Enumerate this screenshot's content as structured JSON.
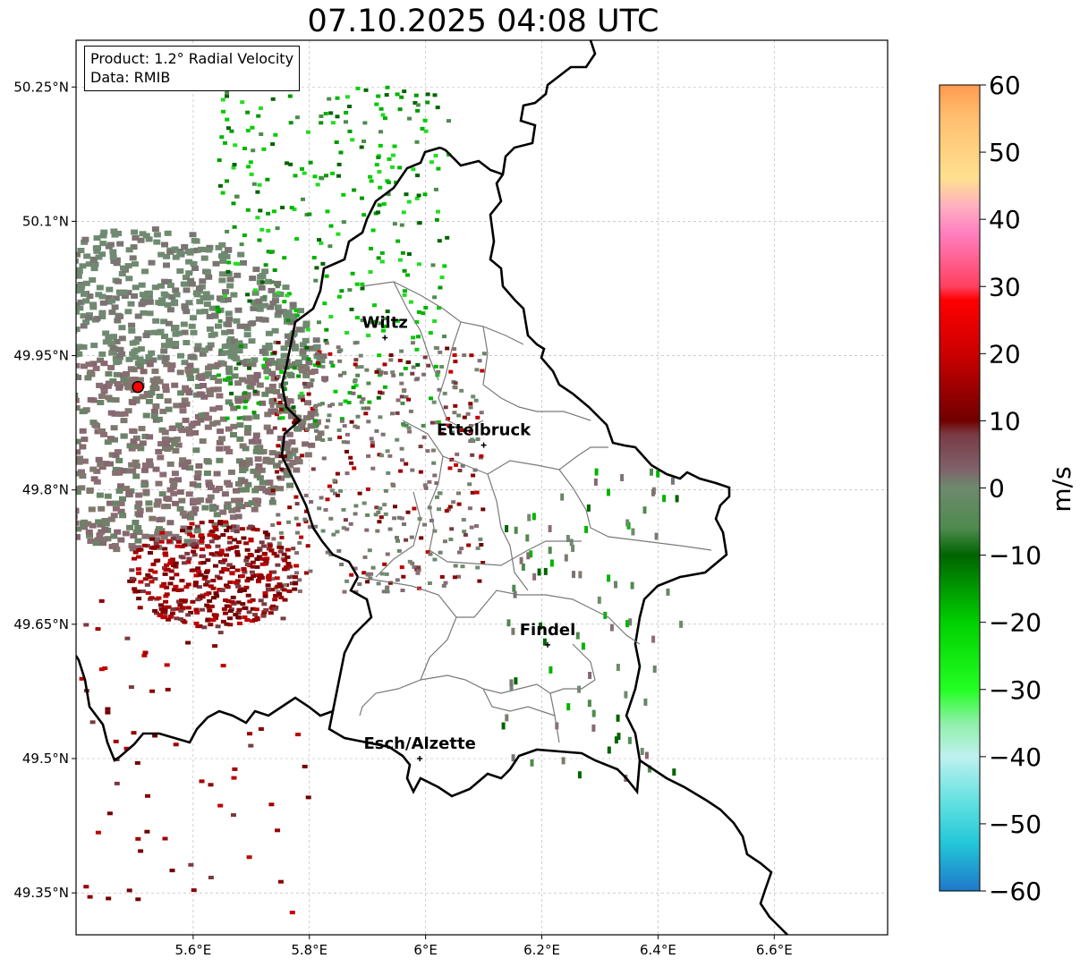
{
  "title": "07.10.2025 04:08 UTC",
  "info": {
    "product": "Product: 1.2° Radial Velocity",
    "source": "Data: RMIB"
  },
  "map": {
    "lon_range": [
      5.4,
      6.8
    ],
    "lat_range": [
      49.3,
      50.3
    ],
    "lon_ticks": [
      {
        "value": 5.6,
        "label": "5.6°E"
      },
      {
        "value": 5.8,
        "label": "5.8°E"
      },
      {
        "value": 6.0,
        "label": "6°E"
      },
      {
        "value": 6.2,
        "label": "6.2°E"
      },
      {
        "value": 6.4,
        "label": "6.4°E"
      },
      {
        "value": 6.6,
        "label": "6.6°E"
      }
    ],
    "lat_ticks": [
      {
        "value": 50.25,
        "label": "50.25°N"
      },
      {
        "value": 50.1,
        "label": "50.1°N"
      },
      {
        "value": 49.95,
        "label": "49.95°N"
      },
      {
        "value": 49.8,
        "label": "49.8°N"
      },
      {
        "value": 49.65,
        "label": "49.65°N"
      },
      {
        "value": 49.5,
        "label": "49.5°N"
      },
      {
        "value": 49.35,
        "label": "49.35°N"
      }
    ],
    "grid": true,
    "radar_site": {
      "lon": 5.505,
      "lat": 49.915,
      "color": "#ff0000"
    },
    "cities": [
      {
        "name": "Wiltz",
        "lon": 5.93,
        "lat": 49.97
      },
      {
        "name": "Ettelbruck",
        "lon": 6.1,
        "lat": 49.85
      },
      {
        "name": "Findel",
        "lon": 6.21,
        "lat": 49.627
      },
      {
        "name": "Esch/Alzette",
        "lon": 5.99,
        "lat": 49.5
      }
    ]
  },
  "colorbar": {
    "label": "m/s",
    "min": -60,
    "max": 60,
    "ticks": [
      {
        "value": 60,
        "label": "60"
      },
      {
        "value": 50,
        "label": "50"
      },
      {
        "value": 40,
        "label": "40"
      },
      {
        "value": 30,
        "label": "30"
      },
      {
        "value": 20,
        "label": "20"
      },
      {
        "value": 10,
        "label": "10"
      },
      {
        "value": 0,
        "label": "0"
      },
      {
        "value": -10,
        "label": "−10"
      },
      {
        "value": -20,
        "label": "−20"
      },
      {
        "value": -30,
        "label": "−30"
      },
      {
        "value": -40,
        "label": "−40"
      },
      {
        "value": -50,
        "label": "−50"
      },
      {
        "value": -60,
        "label": "−60"
      }
    ],
    "stops": [
      {
        "value": -60,
        "color": "#1f78c8"
      },
      {
        "value": -53,
        "color": "#22c6d8"
      },
      {
        "value": -47,
        "color": "#5fe0e0"
      },
      {
        "value": -40,
        "color": "#bff0f0"
      },
      {
        "value": -35,
        "color": "#8ff0a8"
      },
      {
        "value": -30,
        "color": "#22ff22"
      },
      {
        "value": -20,
        "color": "#00d000"
      },
      {
        "value": -10,
        "color": "#006400"
      },
      {
        "value": -6,
        "color": "#4e8a4e"
      },
      {
        "value": 0,
        "color": "#6e8a6e"
      },
      {
        "value": 3,
        "color": "#80606a"
      },
      {
        "value": 8,
        "color": "#7a3a42"
      },
      {
        "value": 10,
        "color": "#700000"
      },
      {
        "value": 20,
        "color": "#cc0000"
      },
      {
        "value": 28,
        "color": "#ff0000"
      },
      {
        "value": 30,
        "color": "#ff4060"
      },
      {
        "value": 38,
        "color": "#ff80c0"
      },
      {
        "value": 42,
        "color": "#ffb0c0"
      },
      {
        "value": 46,
        "color": "#ffe090"
      },
      {
        "value": 55,
        "color": "#ffc070"
      },
      {
        "value": 60,
        "color": "#ff9a50"
      }
    ]
  }
}
